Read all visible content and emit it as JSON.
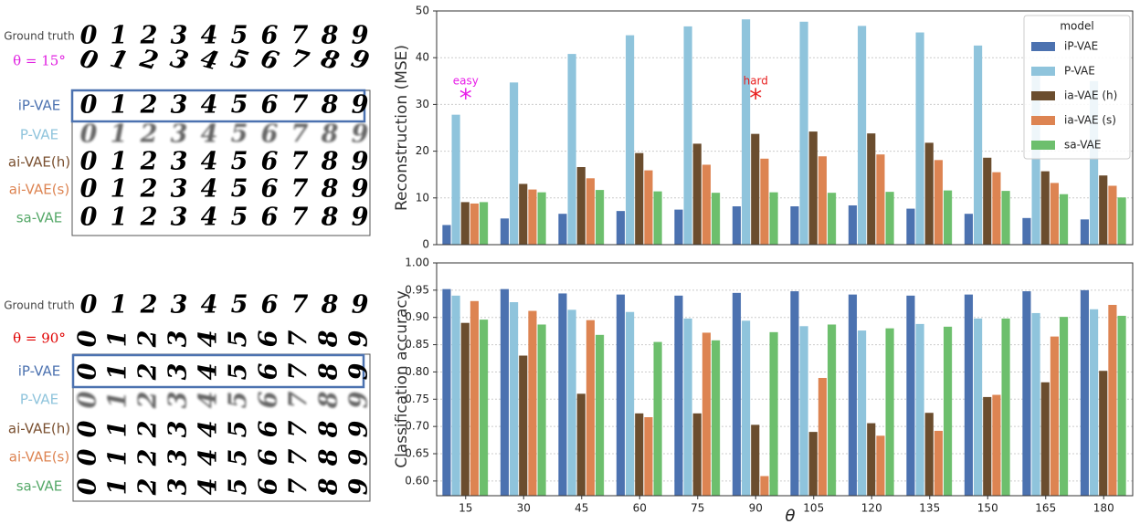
{
  "digits": [
    "0",
    "1",
    "2",
    "3",
    "4",
    "5",
    "6",
    "7",
    "8",
    "9"
  ],
  "figure_panels": [
    {
      "rows": [
        {
          "label": "Ground truth",
          "color": "#444444"
        },
        {
          "label": "θ = 15°",
          "color": "#e020e0"
        },
        {
          "label": "iP-VAE",
          "color": "#4c72b0"
        },
        {
          "label": "P-VAE",
          "color": "#8fc4dc"
        },
        {
          "label": "ai-VAE(h)",
          "color": "#7a5030"
        },
        {
          "label": "ai-VAE(s)",
          "color": "#dd8452"
        },
        {
          "label": "sa-VAE",
          "color": "#55a868"
        }
      ]
    },
    {
      "rows": [
        {
          "label": "Ground truth",
          "color": "#444444"
        },
        {
          "label": "θ = 90°",
          "color": "#e00000"
        },
        {
          "label": "iP-VAE",
          "color": "#4c72b0"
        },
        {
          "label": "P-VAE",
          "color": "#8fc4dc"
        },
        {
          "label": "ai-VAE(h)",
          "color": "#7a5030"
        },
        {
          "label": "ai-VAE(s)",
          "color": "#dd8452"
        },
        {
          "label": "sa-VAE",
          "color": "#55a868"
        }
      ]
    }
  ],
  "chart_data": [
    {
      "type": "bar",
      "ylabel": "Reconstruction (MSE)",
      "ylim": [
        0,
        50
      ],
      "yticks": [
        0,
        10,
        20,
        30,
        40,
        50
      ],
      "grid": true,
      "legend_title": "model",
      "legend": "upper right",
      "annotations": [
        {
          "text": "easy",
          "marker": "*",
          "x": "15",
          "color": "#e81ee8"
        },
        {
          "text": "hard",
          "marker": "*",
          "x": "90",
          "color": "#e82020"
        }
      ],
      "series": [
        {
          "name": "iP-VAE",
          "color": "#4c72b0",
          "values": [
            4.2,
            5.6,
            6.6,
            7.2,
            7.5,
            8.2,
            8.2,
            8.4,
            7.7,
            6.6,
            5.7,
            5.4
          ]
        },
        {
          "name": "P-VAE",
          "color": "#8fc4dc",
          "values": [
            27.8,
            34.7,
            40.8,
            44.8,
            46.7,
            48.2,
            47.7,
            46.8,
            45.4,
            42.6,
            38,
            35
          ]
        },
        {
          "name": "ia-VAE (h)",
          "color": "#6b4d2e",
          "values": [
            9.1,
            13,
            16.6,
            19.6,
            21.6,
            23.7,
            24.2,
            23.8,
            21.8,
            18.6,
            15.7,
            14.8
          ]
        },
        {
          "name": "ia-VAE (s)",
          "color": "#dd8452",
          "values": [
            8.8,
            11.8,
            14.2,
            15.9,
            17.1,
            18.4,
            18.9,
            19.3,
            18.1,
            15.5,
            13.2,
            12.6
          ]
        },
        {
          "name": "sa-VAE",
          "color": "#6dbf6d",
          "values": [
            9.1,
            11.2,
            11.7,
            11.4,
            11.1,
            11.2,
            11.1,
            11.3,
            11.6,
            11.5,
            10.8,
            10.1
          ]
        }
      ]
    },
    {
      "type": "bar",
      "ylabel": "Classification accuracy",
      "xlabel": "θ",
      "grid": true,
      "categories": [
        "15",
        "30",
        "45",
        "60",
        "75",
        "90",
        "105",
        "120",
        "135",
        "150",
        "165",
        "180"
      ],
      "ylim": [
        0.573,
        1.0
      ],
      "yticks": [
        {
          "value": 0.6,
          "label": "0.60"
        },
        {
          "value": 0.65,
          "label": "0.65"
        },
        {
          "value": 0.7,
          "label": "0.70"
        },
        {
          "value": 0.75,
          "label": "0.75"
        },
        {
          "value": 0.8,
          "label": "0.80"
        },
        {
          "value": 0.85,
          "label": "0.85"
        },
        {
          "value": 0.9,
          "label": "0.90"
        },
        {
          "value": 0.95,
          "label": "0.95"
        },
        {
          "value": 1.0,
          "label": "1.00"
        }
      ],
      "series": [
        {
          "name": "iP-VAE",
          "color": "#4c72b0",
          "values": [
            0.952,
            0.952,
            0.944,
            0.942,
            0.94,
            0.945,
            0.948,
            0.942,
            0.94,
            0.942,
            0.948,
            0.95
          ]
        },
        {
          "name": "P-VAE",
          "color": "#8fc4dc",
          "values": [
            0.94,
            0.928,
            0.914,
            0.91,
            0.898,
            0.894,
            0.884,
            0.876,
            0.888,
            0.898,
            0.908,
            0.915
          ]
        },
        {
          "name": "ia-VAE (h)",
          "color": "#6b4d2e",
          "values": [
            0.89,
            0.83,
            0.76,
            0.724,
            0.724,
            0.703,
            0.69,
            0.706,
            0.725,
            0.754,
            0.781,
            0.802
          ]
        },
        {
          "name": "ia-VAE (s)",
          "color": "#dd8452",
          "values": [
            0.93,
            0.912,
            0.895,
            0.717,
            0.872,
            0.609,
            0.789,
            0.683,
            0.692,
            0.758,
            0.865,
            0.923
          ]
        },
        {
          "name": "sa-VAE",
          "color": "#6dbf6d",
          "values": [
            0.896,
            0.887,
            0.868,
            0.855,
            0.858,
            0.873,
            0.887,
            0.88,
            0.883,
            0.898,
            0.901,
            0.903
          ]
        }
      ]
    }
  ]
}
